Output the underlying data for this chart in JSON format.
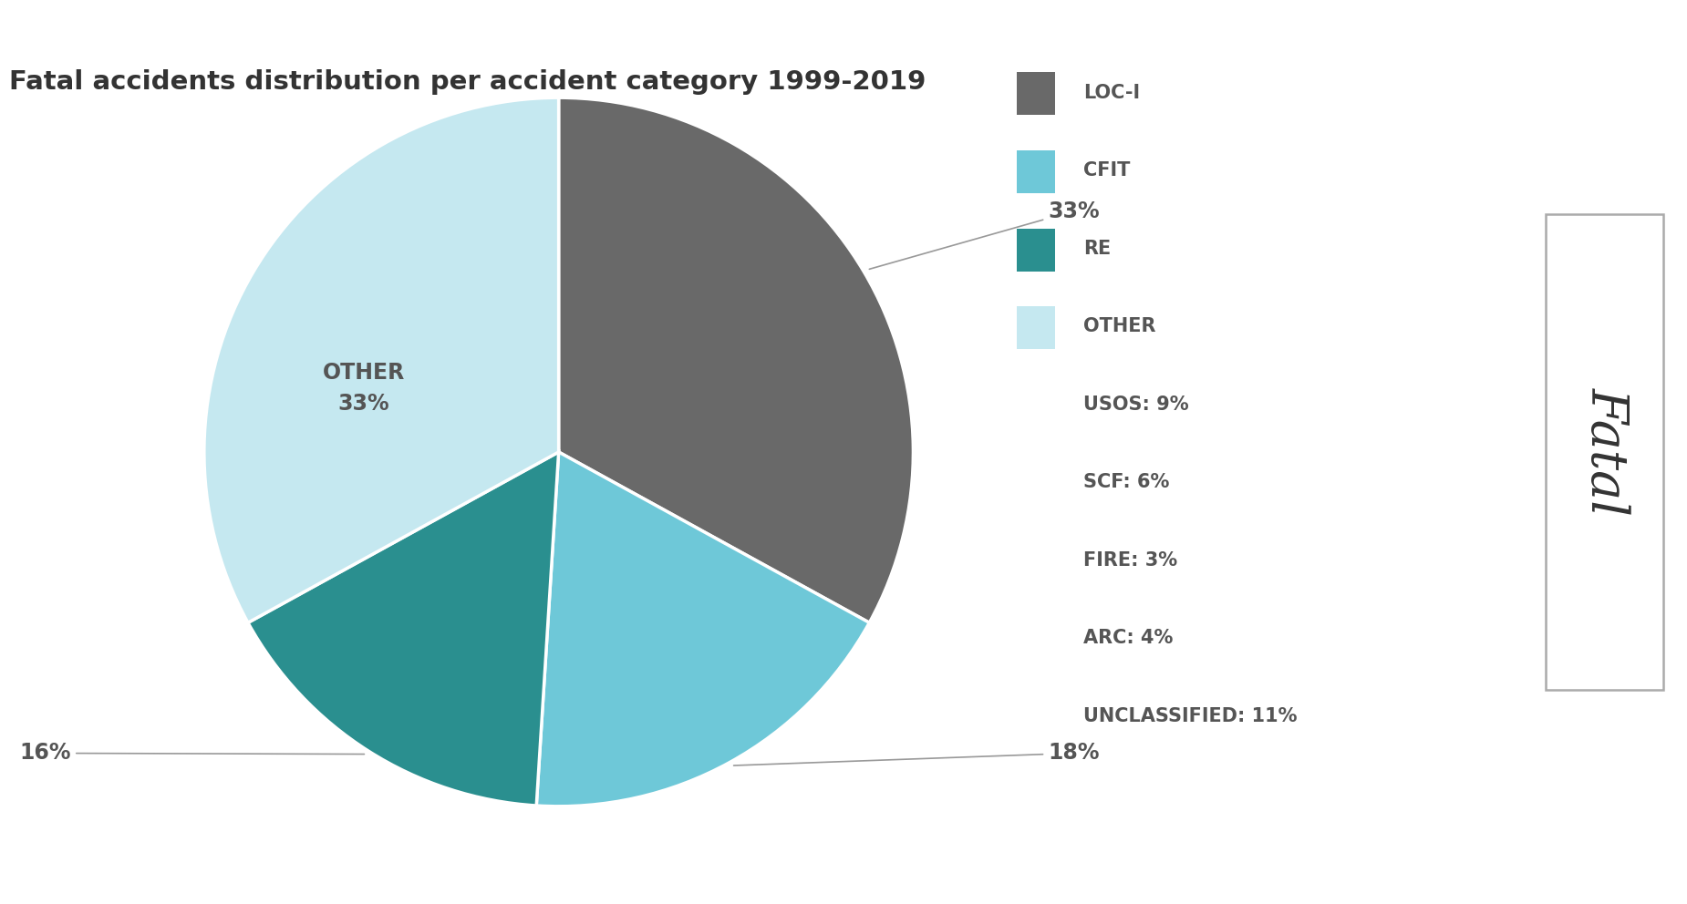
{
  "title": "Fatal accidents distribution per accident category 1999-2019",
  "slices": [
    {
      "label": "LOC-I",
      "pct": 33,
      "color": "#696969"
    },
    {
      "label": "CFIT",
      "pct": 18,
      "color": "#6ec8d8"
    },
    {
      "label": "RE",
      "pct": 16,
      "color": "#2a8f8f"
    },
    {
      "label": "OTHER",
      "pct": 33,
      "color": "#c5e8f0"
    }
  ],
  "legend_items": [
    {
      "label": "LOC-I",
      "color": "#696969",
      "is_patch": true
    },
    {
      "label": "CFIT",
      "color": "#6ec8d8",
      "is_patch": true
    },
    {
      "label": "RE",
      "color": "#2a8f8f",
      "is_patch": true
    },
    {
      "label": "OTHER",
      "color": "#c5e8f0",
      "is_patch": true
    },
    {
      "label": "USOS: 9%",
      "color": null,
      "is_patch": false
    },
    {
      "label": "SCF: 6%",
      "color": null,
      "is_patch": false
    },
    {
      "label": "FIRE: 3%",
      "color": null,
      "is_patch": false
    },
    {
      "label": "ARC: 4%",
      "color": null,
      "is_patch": false
    },
    {
      "label": "UNCLASSIFIED: 11%",
      "color": null,
      "is_patch": false
    }
  ],
  "background_color": "#ffffff",
  "title_fontsize": 21,
  "label_fontsize": 17,
  "legend_fontsize": 15
}
